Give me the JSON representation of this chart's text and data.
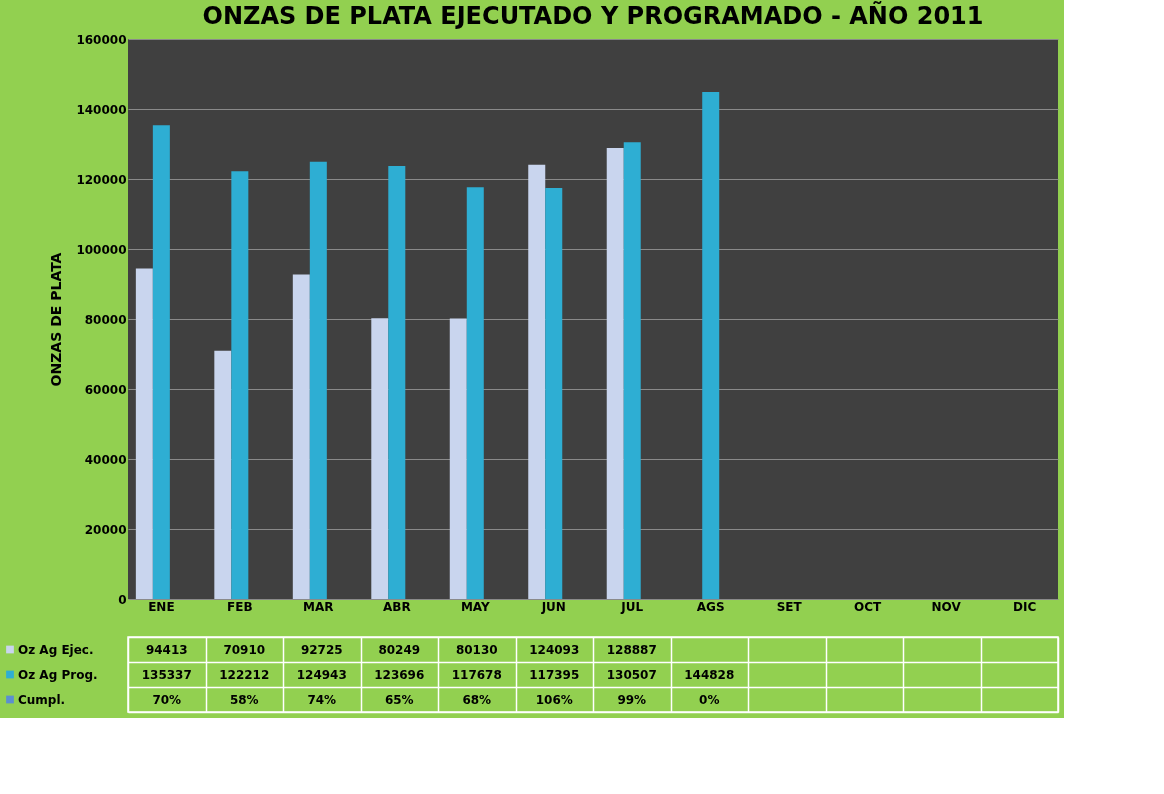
{
  "chart_data": {
    "type": "bar",
    "title": "ONZAS DE PLATA EJECUTADO Y PROGRAMADO - AÑO 2011",
    "ylabel": "ONZAS DE PLATA",
    "categories": [
      "ENE",
      "FEB",
      "MAR",
      "ABR",
      "MAY",
      "JUN",
      "JUL",
      "AGS",
      "SET",
      "OCT",
      "NOV",
      "DIC"
    ],
    "series": [
      {
        "name": "Oz Ag Ejec.",
        "color": "#c9d5ee",
        "values": [
          94413,
          70910,
          92725,
          80249,
          80130,
          124093,
          128887,
          null,
          null,
          null,
          null,
          null
        ],
        "value_labels": [
          "94413",
          "70910",
          "92725",
          "80249",
          "80130",
          "124093",
          "128887",
          null,
          null,
          null,
          null,
          null
        ]
      },
      {
        "name": "Oz Ag Prog.",
        "color": "#2eaed3",
        "values": [
          135337,
          122212,
          124943,
          123696,
          117678,
          117395,
          130507,
          144828,
          null,
          null,
          null,
          null
        ],
        "value_labels": [
          "135337",
          "122212",
          "124943",
          "123696",
          "117678",
          "117395",
          "130507",
          "144828",
          null,
          null,
          null,
          null
        ]
      },
      {
        "name": "Cumpl.",
        "color": "#5b8fd0",
        "values": [
          0.7,
          0.58,
          0.74,
          0.65,
          0.68,
          1.06,
          0.99,
          0,
          null,
          null,
          null,
          null
        ],
        "value_labels": [
          "70%",
          "58%",
          "74%",
          "65%",
          "68%",
          "106%",
          "99%",
          "0%",
          null,
          null,
          null,
          null
        ]
      }
    ],
    "ylim": [
      0,
      160000
    ],
    "yticks": [
      0,
      20000,
      40000,
      60000,
      80000,
      100000,
      120000,
      140000,
      160000
    ],
    "grid": "y",
    "legend": "bottom"
  }
}
